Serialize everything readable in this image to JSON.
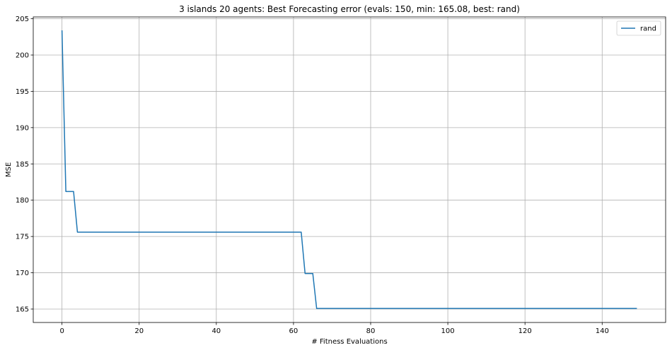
{
  "chart_data": {
    "type": "line",
    "title": "3 islands 20 agents: Best Forecasting error (evals: 150, min: 165.08, best: rand)",
    "xlabel": "# Fitness Evaluations",
    "ylabel": "MSE",
    "xlim": [
      -7.45,
      156.45
    ],
    "ylim": [
      163.15,
      205.25
    ],
    "xticks": [
      0,
      20,
      40,
      60,
      80,
      100,
      120,
      140
    ],
    "yticks": [
      165,
      170,
      175,
      180,
      185,
      190,
      195,
      200,
      205
    ],
    "grid": true,
    "legend_position": "top-right",
    "colors": {
      "series": "#1f77b4",
      "grid": "#b0b0b0"
    },
    "series": [
      {
        "name": "rand",
        "points": [
          [
            0,
            203.4
          ],
          [
            1,
            181.2
          ],
          [
            3,
            181.2
          ],
          [
            4,
            175.6
          ],
          [
            62,
            175.6
          ],
          [
            63,
            169.9
          ],
          [
            65,
            169.9
          ],
          [
            66,
            165.08
          ],
          [
            149,
            165.08
          ]
        ]
      }
    ]
  }
}
